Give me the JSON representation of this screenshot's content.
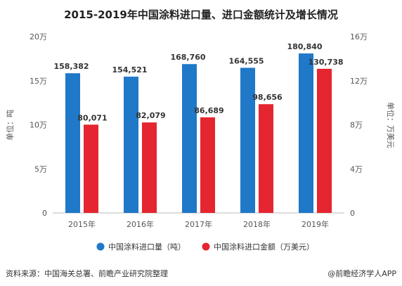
{
  "chart_data": {
    "type": "bar",
    "title": "2015-2019年中国涂料进口量、进口金额统计及增长情况",
    "categories": [
      "2015年",
      "2016年",
      "2017年",
      "2018年",
      "2019年"
    ],
    "series": [
      {
        "name": "中国涂料进口量（吨）",
        "axis": "left",
        "color": "#1f78c8",
        "values": [
          158382,
          154521,
          168760,
          164555,
          180840
        ],
        "labels": [
          "158,382",
          "154,521",
          "168,760",
          "164,555",
          "180,840"
        ]
      },
      {
        "name": "中国涂料进口金额（万美元）",
        "axis": "right",
        "color": "#e5252f",
        "values": [
          80071,
          82079,
          86689,
          98656,
          130738
        ],
        "labels": [
          "80,071",
          "82,079",
          "86,689",
          "98,656",
          "130,738"
        ]
      }
    ],
    "y_left": {
      "label": "单位：吨",
      "range": [
        0,
        200000
      ],
      "ticks": [
        0,
        50000,
        100000,
        150000,
        200000
      ],
      "tick_labels": [
        "0",
        "5万",
        "10万",
        "15万",
        "20万"
      ]
    },
    "y_right": {
      "label": "单位：万美元",
      "range": [
        0,
        160000
      ],
      "ticks": [
        0,
        40000,
        80000,
        120000,
        160000
      ],
      "tick_labels": [
        "0",
        "4万",
        "8万",
        "12万",
        "16万"
      ]
    },
    "legend_position": "bottom",
    "grid": false
  },
  "footer": {
    "source": "资料来源：中国海关总署、前瞻产业研究院整理",
    "brand": "@前瞻经济学人APP"
  }
}
